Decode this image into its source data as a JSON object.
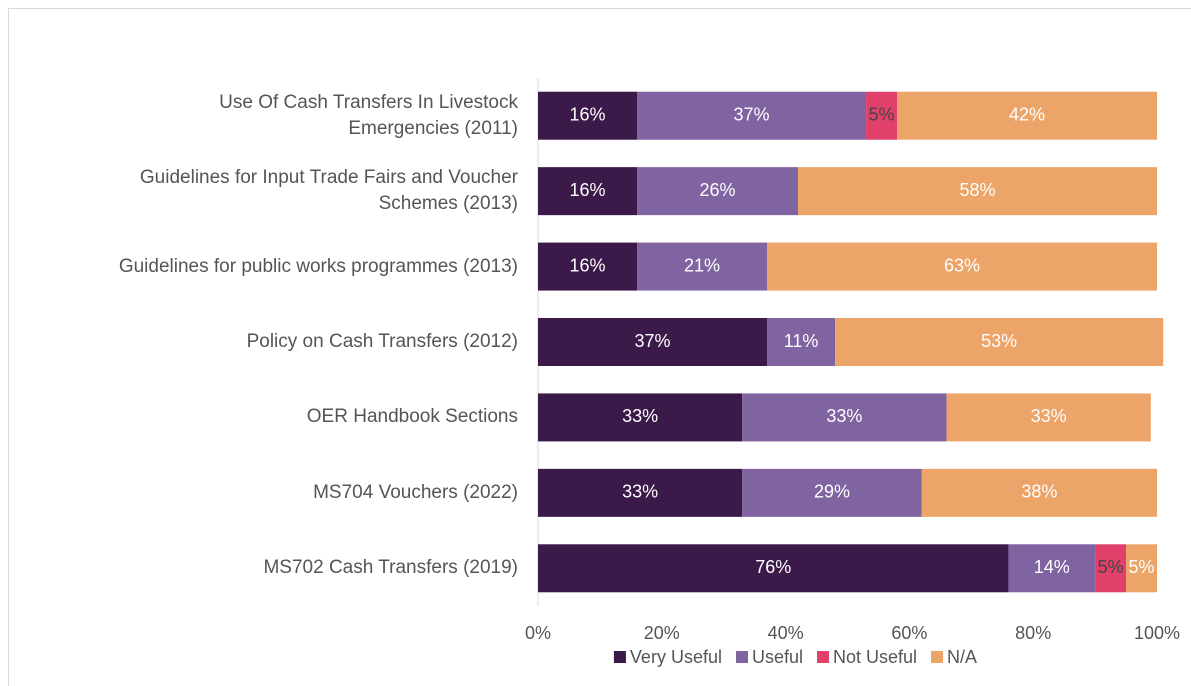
{
  "chart_data": {
    "type": "stacked_barh",
    "categories": [
      "Use Of Cash Transfers In Livestock\nEmergencies (2011)",
      "Guidelines for Input Trade Fairs and Voucher\nSchemes (2013)",
      "Guidelines for public works programmes (2013)",
      "Policy on Cash Transfers (2012)",
      "OER Handbook Sections",
      "MS704 Vouchers (2022)",
      "MS702 Cash Transfers (2019)"
    ],
    "series": [
      {
        "name": "Very Useful",
        "color": "#3b1a4a",
        "values": [
          16,
          16,
          16,
          37,
          33,
          33,
          76
        ],
        "value_labels": [
          "16%",
          "16%",
          "16%",
          "37%",
          "33%",
          "33%",
          "76%"
        ]
      },
      {
        "name": "Useful",
        "color": "#8064a2",
        "values": [
          37,
          26,
          21,
          11,
          33,
          29,
          14
        ],
        "value_labels": [
          "37%",
          "26%",
          "21%",
          "11%",
          "33%",
          "29%",
          "14%"
        ]
      },
      {
        "name": "Not Useful",
        "color": "#e0406a",
        "values": [
          5,
          null,
          null,
          null,
          null,
          null,
          5
        ],
        "value_labels": [
          "5%",
          null,
          null,
          null,
          null,
          null,
          "5%"
        ]
      },
      {
        "name": "N/A",
        "color": "#eca468",
        "values": [
          42,
          58,
          63,
          53,
          33,
          38,
          5
        ],
        "value_labels": [
          "42%",
          "58%",
          "63%",
          "53%",
          "33%",
          "38%",
          "5%"
        ]
      }
    ],
    "xlim": [
      0,
      100
    ],
    "xticks": [
      {
        "value": 0,
        "label": "0%"
      },
      {
        "value": 20,
        "label": "20%"
      },
      {
        "value": 40,
        "label": "40%"
      },
      {
        "value": 60,
        "label": "60%"
      },
      {
        "value": 80,
        "label": "80%"
      },
      {
        "value": 100,
        "label": "100%"
      }
    ],
    "legend": "bottom"
  }
}
